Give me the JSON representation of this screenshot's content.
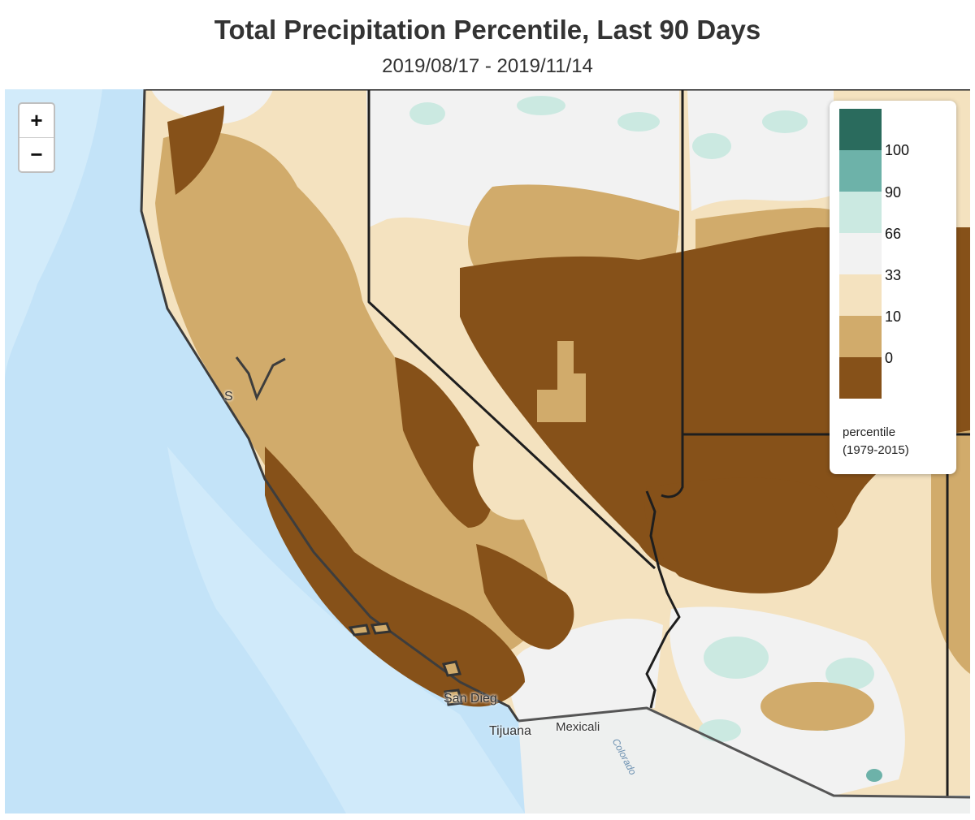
{
  "header": {
    "title": "Total Precipitation Percentile, Last 90 Days",
    "date_range": "2019/08/17 - 2019/11/14"
  },
  "zoom": {
    "in_label": "+",
    "out_label": "−"
  },
  "places": {
    "san_diego": "San Dieg",
    "tijuana": "Tijuana",
    "mexicali": "Mexicali",
    "colorado_river": "Colorado",
    "sf_fragment": "S"
  },
  "legend": {
    "labels": [
      "100",
      "90",
      "66",
      "33",
      "10",
      "0"
    ],
    "title_line1": "percentile",
    "title_line2": "(1979-2015)",
    "colors": [
      "#2a6b5d",
      "#6db2a9",
      "#cbe9e1",
      "#f2f2f2",
      "#f4e2bf",
      "#d1ab6b",
      "#865119"
    ]
  },
  "map_colors": {
    "ocean": "#c3e3f8",
    "ocean_light": "#d9eefb",
    "land_base": "#f4e2bf",
    "very_dry": "#865119",
    "dry": "#d1ab6b",
    "below_normal": "#f4e2bf",
    "normal": "#f2f2f2",
    "wet": "#cbe9e1",
    "very_wet": "#6db2a9",
    "mexico_land": "#eef0ef",
    "border": "#1e1e1e"
  }
}
